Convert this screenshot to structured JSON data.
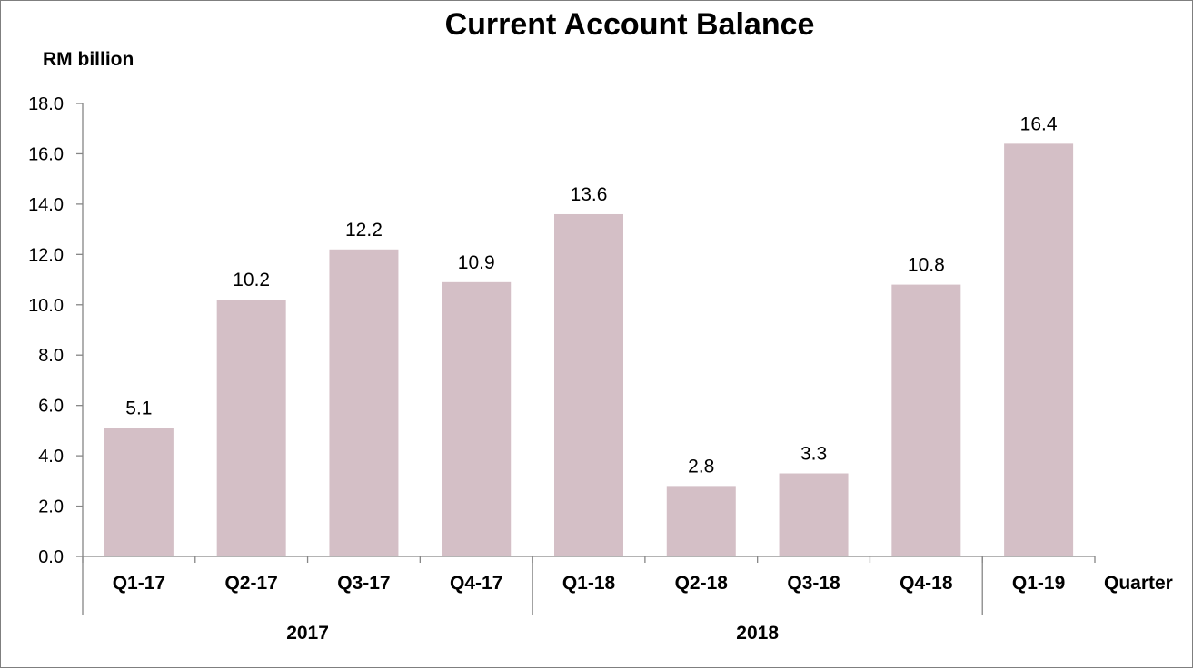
{
  "chart_data": {
    "type": "bar",
    "title": "Current Account Balance",
    "ylabel": "RM billion",
    "xlabel": "Quarter",
    "categories": [
      "Q1-17",
      "Q2-17",
      "Q3-17",
      "Q4-17",
      "Q1-18",
      "Q2-18",
      "Q3-18",
      "Q4-18",
      "Q1-19"
    ],
    "values": [
      5.1,
      10.2,
      12.2,
      10.9,
      13.6,
      2.8,
      3.3,
      10.8,
      16.4
    ],
    "data_labels": [
      "5.1",
      "10.2",
      "12.2",
      "10.9",
      "13.6",
      "2.8",
      "3.3",
      "10.8",
      "16.4"
    ],
    "groups": [
      {
        "label": "2017",
        "start": 0,
        "end": 3
      },
      {
        "label": "2018",
        "start": 4,
        "end": 7
      }
    ],
    "ylim": [
      0,
      18
    ],
    "yticks": [
      0,
      2,
      4,
      6,
      8,
      10,
      12,
      14,
      16,
      18
    ],
    "ytick_labels": [
      "0.0",
      "2.0",
      "4.0",
      "6.0",
      "8.0",
      "10.0",
      "12.0",
      "14.0",
      "16.0",
      "18.0"
    ],
    "grid": false,
    "legend": "none",
    "bar_color": "#d4bfc6",
    "axis_color": "#868686"
  }
}
